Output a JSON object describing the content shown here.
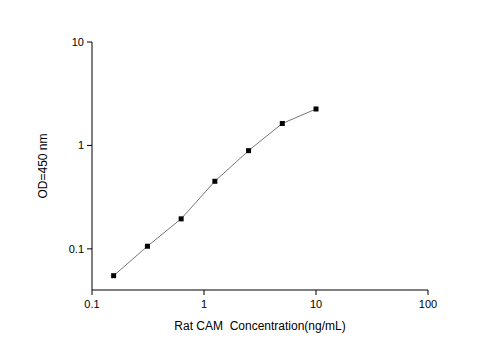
{
  "chart_data": {
    "type": "line",
    "log": true,
    "grid": false,
    "x_label": "Rat CAM  Concentration(ng/mL)",
    "y_label": "OD=450 nm",
    "x": [
      0.156,
      0.3125,
      0.625,
      1.25,
      2.5,
      5,
      10
    ],
    "values": [
      0.055,
      0.106,
      0.195,
      0.45,
      0.89,
      1.63,
      2.25
    ],
    "color": "#000000",
    "marker": "square",
    "line_style": "solid",
    "xlim": [
      0.1,
      100
    ],
    "xticks": [
      0.1,
      1,
      10,
      100
    ],
    "ylim": [
      0.04,
      10
    ],
    "yticks": [
      0.1,
      1,
      10
    ]
  }
}
